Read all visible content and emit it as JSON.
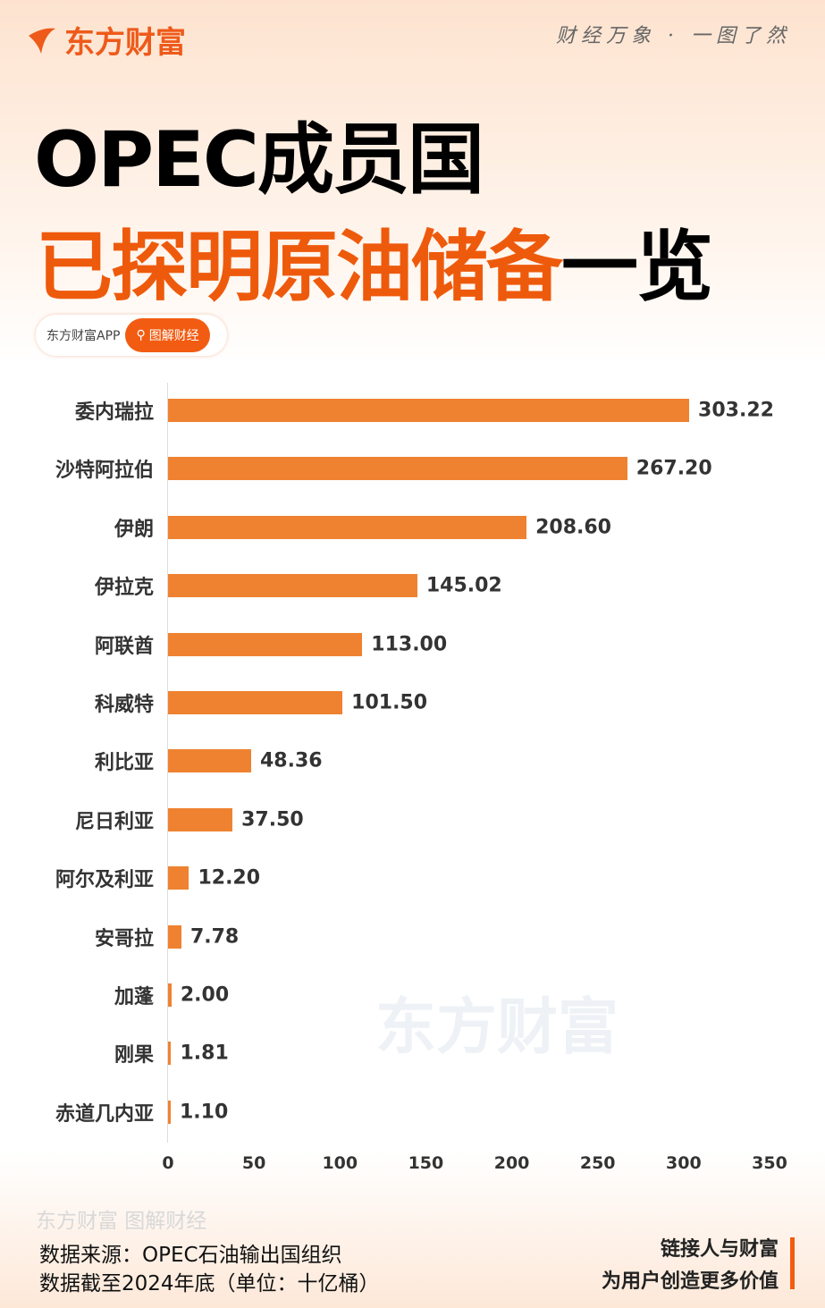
{
  "header": {
    "brand": "东方财富",
    "slogan": "财经万象 · 一图了然"
  },
  "title": {
    "line1": "OPEC成员国",
    "line2_orange": "已探明原油储备",
    "line2_black": "一览"
  },
  "badge": {
    "app": "东方财富APP",
    "pill": "图解财经"
  },
  "watermark": "东方财富",
  "footer": {
    "watermark": "东方财富 图解财经",
    "source": "数据来源：OPEC石油输出国组织",
    "note": "数据截至2024年底（单位：十亿桶）",
    "tag1": "链接人与财富",
    "tag2": "为用户创造更多价值"
  },
  "colors": {
    "bar": "#ef8230",
    "accent": "#ee5a0c"
  },
  "chart_data": {
    "type": "bar",
    "orientation": "horizontal",
    "categories": [
      "委内瑞拉",
      "沙特阿拉伯",
      "伊朗",
      "伊拉克",
      "阿联酋",
      "科威特",
      "利比亚",
      "尼日利亚",
      "阿尔及利亚",
      "安哥拉",
      "加蓬",
      "刚果",
      "赤道几内亚"
    ],
    "values": [
      303.22,
      267.2,
      208.6,
      145.02,
      113.0,
      101.5,
      48.36,
      37.5,
      12.2,
      7.78,
      2.0,
      1.81,
      1.1
    ],
    "value_labels": [
      "303.22",
      "267.20",
      "208.60",
      "145.02",
      "113.00",
      "101.50",
      "48.36",
      "37.50",
      "12.20",
      "7.78",
      "2.00",
      "1.81",
      "1.10"
    ],
    "xlim": [
      0,
      350
    ],
    "xticks": [
      "0",
      "50",
      "100",
      "150",
      "200",
      "250",
      "300",
      "350"
    ],
    "grid": false
  }
}
